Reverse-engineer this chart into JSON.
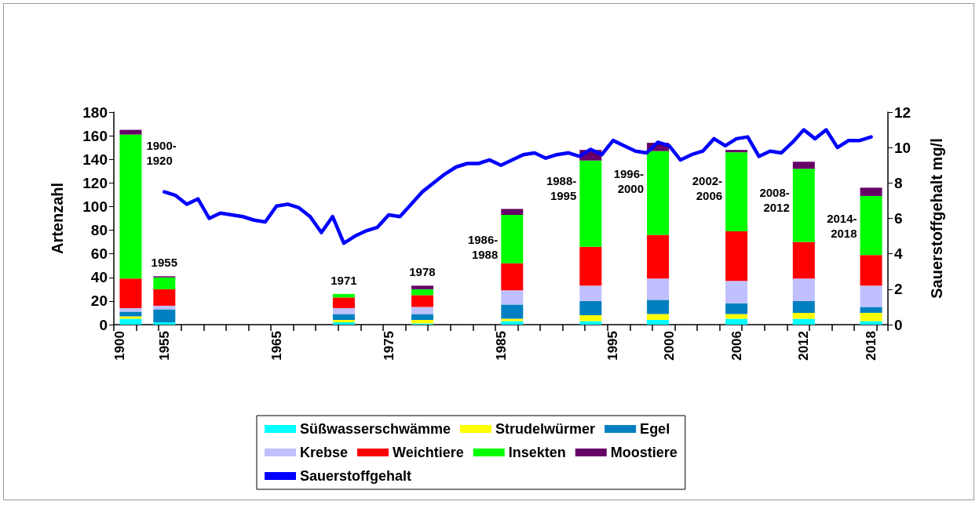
{
  "chart_data": {
    "type": "bar",
    "stacked": true,
    "ylabel": "Artenzahl",
    "y2label": "Sauerstoffgehalt mg/l",
    "ylim": [
      0,
      180
    ],
    "yticks": [
      0,
      20,
      40,
      60,
      80,
      100,
      120,
      140,
      160,
      180
    ],
    "y2lim": [
      0,
      12
    ],
    "y2ticks": [
      0,
      2,
      4,
      6,
      8,
      10,
      12
    ],
    "grid": false,
    "legend": "bottom",
    "annotations": [
      "1900-1920",
      "1955",
      "1971",
      "1978",
      "1986-1988",
      "1988-1995",
      "1996-2000",
      "2002-2006",
      "2008-2012",
      "2014-2018"
    ],
    "categories": [
      "1900",
      null,
      null,
      null,
      "1955",
      null,
      null,
      null,
      null,
      null,
      null,
      null,
      null,
      null,
      "1965",
      null,
      null,
      null,
      null,
      null,
      null,
      null,
      null,
      null,
      "1975",
      null,
      null,
      null,
      null,
      null,
      null,
      null,
      null,
      null,
      "1985",
      null,
      null,
      null,
      null,
      null,
      null,
      null,
      null,
      null,
      "1995",
      null,
      null,
      null,
      null,
      "2000",
      null,
      null,
      null,
      null,
      null,
      "2006",
      null,
      null,
      null,
      null,
      null,
      "2012",
      null,
      null,
      null,
      null,
      null,
      "2018",
      null
    ],
    "series": [
      {
        "name": "Süßwasserschwämme",
        "color": "#00ffff",
        "values": [
          null,
          5,
          null,
          null,
          2,
          null,
          null,
          null,
          null,
          null,
          null,
          null,
          null,
          null,
          null,
          null,
          null,
          null,
          null,
          null,
          2,
          null,
          null,
          null,
          null,
          null,
          null,
          1,
          null,
          null,
          null,
          null,
          null,
          null,
          null,
          3,
          null,
          null,
          null,
          null,
          null,
          null,
          3,
          null,
          null,
          null,
          null,
          null,
          4,
          null,
          null,
          null,
          null,
          null,
          null,
          5,
          null,
          null,
          null,
          null,
          null,
          5,
          null,
          null,
          null,
          null,
          null,
          3,
          null
        ]
      },
      {
        "name": "Strudelwürmer",
        "color": "#ffff00",
        "values": [
          null,
          2,
          null,
          null,
          0,
          null,
          null,
          null,
          null,
          null,
          null,
          null,
          null,
          null,
          null,
          null,
          null,
          null,
          null,
          null,
          2,
          null,
          null,
          null,
          null,
          null,
          null,
          3,
          null,
          null,
          null,
          null,
          null,
          null,
          null,
          2,
          null,
          null,
          null,
          null,
          null,
          null,
          5,
          null,
          null,
          null,
          null,
          null,
          5,
          null,
          null,
          null,
          null,
          null,
          null,
          4,
          null,
          null,
          null,
          null,
          null,
          5,
          null,
          null,
          null,
          null,
          null,
          7,
          null
        ]
      },
      {
        "name": "Egel",
        "color": "#0080c0",
        "values": [
          null,
          4,
          null,
          null,
          11,
          null,
          null,
          null,
          null,
          null,
          null,
          null,
          null,
          null,
          null,
          null,
          null,
          null,
          null,
          null,
          5,
          null,
          null,
          null,
          null,
          null,
          null,
          5,
          null,
          null,
          null,
          null,
          null,
          null,
          null,
          12,
          null,
          null,
          null,
          null,
          null,
          null,
          12,
          null,
          null,
          null,
          null,
          null,
          12,
          null,
          null,
          null,
          null,
          null,
          null,
          9,
          null,
          null,
          null,
          null,
          null,
          10,
          null,
          null,
          null,
          null,
          null,
          5,
          null
        ]
      },
      {
        "name": "Krebse",
        "color": "#c0c0ff",
        "values": [
          null,
          3,
          null,
          null,
          3,
          null,
          null,
          null,
          null,
          null,
          null,
          null,
          null,
          null,
          null,
          null,
          null,
          null,
          null,
          null,
          5,
          null,
          null,
          null,
          null,
          null,
          null,
          6,
          null,
          null,
          null,
          null,
          null,
          null,
          null,
          12,
          null,
          null,
          null,
          null,
          null,
          null,
          13,
          null,
          null,
          null,
          null,
          null,
          18,
          null,
          null,
          null,
          null,
          null,
          null,
          19,
          null,
          null,
          null,
          null,
          null,
          19,
          null,
          null,
          null,
          null,
          null,
          18,
          null
        ]
      },
      {
        "name": "Weichtiere",
        "color": "#ff0000",
        "values": [
          null,
          25,
          null,
          null,
          14,
          null,
          null,
          null,
          null,
          null,
          null,
          null,
          null,
          null,
          null,
          null,
          null,
          null,
          null,
          null,
          9,
          null,
          null,
          null,
          null,
          null,
          null,
          10,
          null,
          null,
          null,
          null,
          null,
          null,
          null,
          23,
          null,
          null,
          null,
          null,
          null,
          null,
          33,
          null,
          null,
          null,
          null,
          null,
          37,
          null,
          null,
          null,
          null,
          null,
          null,
          42,
          null,
          null,
          null,
          null,
          null,
          31,
          null,
          null,
          null,
          null,
          null,
          26,
          null
        ]
      },
      {
        "name": "Insekten",
        "color": "#00ff00",
        "values": [
          null,
          122,
          null,
          null,
          10,
          null,
          null,
          null,
          null,
          null,
          null,
          null,
          null,
          null,
          null,
          null,
          null,
          null,
          null,
          null,
          3,
          null,
          null,
          null,
          null,
          null,
          null,
          5,
          null,
          null,
          null,
          null,
          null,
          null,
          null,
          41,
          null,
          null,
          null,
          null,
          null,
          null,
          73,
          null,
          null,
          null,
          null,
          null,
          71,
          null,
          null,
          null,
          null,
          null,
          null,
          67,
          null,
          null,
          null,
          null,
          null,
          62,
          null,
          null,
          null,
          null,
          null,
          50,
          null
        ]
      },
      {
        "name": "Moostiere",
        "color": "#660066",
        "values": [
          null,
          4,
          null,
          null,
          1,
          null,
          null,
          null,
          null,
          null,
          null,
          null,
          null,
          null,
          null,
          null,
          null,
          null,
          null,
          null,
          0,
          null,
          null,
          null,
          null,
          null,
          null,
          3,
          null,
          null,
          null,
          null,
          null,
          null,
          null,
          5,
          null,
          null,
          null,
          null,
          null,
          null,
          9,
          null,
          null,
          null,
          null,
          null,
          7,
          null,
          null,
          null,
          null,
          null,
          null,
          2,
          null,
          null,
          null,
          null,
          null,
          6,
          null,
          null,
          null,
          null,
          null,
          7,
          null
        ]
      },
      {
        "name": "Sauerstoffgehalt",
        "type": "line",
        "axis": "y2",
        "color": "#0000ff",
        "marker": "none",
        "line_style": "solid",
        "values": [
          null,
          null,
          null,
          null,
          7.5,
          7.3,
          6.8,
          7.1,
          6.0,
          6.3,
          6.2,
          6.1,
          5.9,
          5.8,
          6.7,
          6.8,
          6.6,
          6.1,
          5.2,
          6.1,
          4.6,
          5.0,
          5.3,
          5.5,
          6.2,
          6.1,
          6.8,
          7.5,
          8.0,
          8.5,
          8.9,
          9.1,
          9.1,
          9.3,
          9.0,
          9.3,
          9.6,
          9.7,
          9.4,
          9.6,
          9.7,
          9.5,
          9.9,
          9.6,
          10.4,
          10.1,
          9.8,
          9.7,
          10.3,
          10.1,
          9.3,
          9.6,
          9.8,
          10.5,
          10.1,
          10.5,
          10.6,
          9.5,
          9.8,
          9.7,
          10.3,
          11.0,
          10.5,
          11.0,
          10.0,
          10.4,
          10.4,
          10.6,
          null
        ]
      }
    ]
  }
}
